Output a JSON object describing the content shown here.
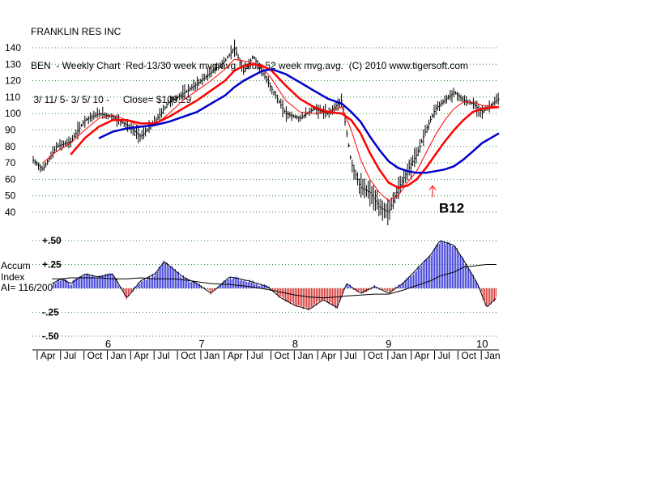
{
  "header": {
    "company": "FRANKLIN RES INC",
    "subtitle": "BEN  - Weekly Chart  Red-13/30 week mvg.avg.  blue 52 week mvg.avg.  (C) 2010 www.tigersoft.com",
    "range": " 3/ 11/ 5- 3/ 5/ 10 -     Close= $109.29"
  },
  "chart_data": [
    {
      "type": "line",
      "title": "FRANKLIN RES INC",
      "subtitle": "BEN  - Weekly Chart  Red-13/30 week mvg.avg.  blue 52 week mvg.avg.  (C) 2010 www.tigersoft.com",
      "ylim": [
        40,
        140
      ],
      "yticks": [
        "140",
        "130",
        "120",
        "110",
        "100",
        "90",
        "80",
        "70",
        "60",
        "50",
        "40"
      ],
      "grid": true,
      "colors": {
        "price": "#000000",
        "ma13": "#ff0000",
        "ma30": "#ff0000",
        "ma52": "#0000cc",
        "signal": "#ff0000"
      },
      "x": [
        2005.19,
        2005.3,
        2005.45,
        2005.6,
        2005.75,
        2005.9,
        2006.05,
        2006.2,
        2006.35,
        2006.5,
        2006.65,
        2006.8,
        2006.95,
        2007.1,
        2007.25,
        2007.35,
        2007.45,
        2007.55,
        2007.65,
        2007.75,
        2007.9,
        2008.05,
        2008.2,
        2008.35,
        2008.5,
        2008.6,
        2008.7,
        2008.8,
        2008.9,
        2009.0,
        2009.1,
        2009.2,
        2009.3,
        2009.4,
        2009.5,
        2009.6,
        2009.7,
        2009.8,
        2009.9,
        2010.0,
        2010.18
      ],
      "series": [
        {
          "key": "price",
          "values": [
            72,
            66,
            80,
            83,
            96,
            100,
            98,
            93,
            86,
            95,
            107,
            112,
            118,
            125,
            132,
            140,
            125,
            135,
            125,
            115,
            100,
            97,
            103,
            100,
            108,
            70,
            55,
            52,
            43,
            40,
            54,
            65,
            75,
            90,
            103,
            108,
            113,
            108,
            106,
            101,
            109
          ]
        },
        {
          "key": "ma13",
          "values": [
            null,
            70,
            77,
            82,
            90,
            97,
            99,
            96,
            92,
            93,
            100,
            108,
            114,
            120,
            127,
            133,
            132,
            131,
            128,
            121,
            108,
            101,
            100,
            101,
            104,
            90,
            72,
            60,
            52,
            47,
            50,
            58,
            65,
            76,
            87,
            96,
            103,
            107,
            107,
            105,
            104
          ]
        },
        {
          "key": "ma30",
          "values": [
            null,
            null,
            null,
            75,
            85,
            92,
            96,
            96,
            94,
            94,
            98,
            103,
            108,
            114,
            120,
            126,
            129,
            130,
            129,
            126,
            117,
            109,
            104,
            101,
            100,
            96,
            88,
            76,
            66,
            58,
            55,
            56,
            60,
            67,
            75,
            83,
            90,
            96,
            101,
            103,
            104
          ]
        },
        {
          "key": "ma52",
          "values": [
            null,
            null,
            null,
            null,
            null,
            85,
            89,
            91,
            92,
            93,
            95,
            98,
            101,
            106,
            111,
            116,
            120,
            123,
            126,
            127,
            124,
            119,
            114,
            109,
            106,
            101,
            95,
            86,
            78,
            71,
            67,
            65,
            64,
            64,
            65,
            66,
            68,
            72,
            77,
            82,
            88
          ]
        }
      ],
      "annotations": [
        {
          "text": "B12",
          "x": 2009.47,
          "y": 58
        }
      ]
    },
    {
      "type": "area",
      "ylabel": "Accum Index",
      "ylabel_lines": [
        "Accum",
        "Index"
      ],
      "ai_label": "AI= 116/200",
      "ylim": [
        -0.5,
        0.5
      ],
      "yticks": [
        {
          "value": 0.5,
          "label": "+.50"
        },
        {
          "value": 0.25,
          "label": "+.25"
        },
        {
          "value": -0.25,
          "label": "-.25"
        },
        {
          "value": -0.5,
          "label": "-.50"
        }
      ],
      "grid": true,
      "colors": {
        "positive": "#0000cc",
        "negative": "#cc0000",
        "ma": "#000000"
      },
      "x": [
        2005.4,
        2005.5,
        2005.6,
        2005.75,
        2005.9,
        2006.05,
        2006.2,
        2006.35,
        2006.5,
        2006.6,
        2006.7,
        2006.8,
        2006.95,
        2007.1,
        2007.3,
        2007.5,
        2007.7,
        2007.85,
        2008.0,
        2008.15,
        2008.3,
        2008.45,
        2008.55,
        2008.7,
        2008.85,
        2009.0,
        2009.15,
        2009.3,
        2009.45,
        2009.55,
        2009.7,
        2009.8,
        2009.95,
        2010.05,
        2010.15
      ],
      "values": [
        0.05,
        0.1,
        0.05,
        0.15,
        0.12,
        0.15,
        -0.1,
        0.08,
        0.15,
        0.28,
        0.2,
        0.12,
        0.05,
        -0.05,
        0.12,
        0.08,
        0.02,
        -0.1,
        -0.18,
        -0.22,
        -0.12,
        -0.2,
        0.05,
        -0.05,
        0.02,
        -0.05,
        0.05,
        0.2,
        0.35,
        0.5,
        0.45,
        0.3,
        0.05,
        -0.2,
        -0.1
      ],
      "ma": [
        0.1,
        0.1,
        0.11,
        0.11,
        0.11,
        0.1,
        0.1,
        0.11,
        0.1,
        0.1,
        0.1,
        0.09,
        0.07,
        0.05,
        0.04,
        0.02,
        -0.01,
        -0.04,
        -0.07,
        -0.09,
        -0.1,
        -0.09,
        -0.08,
        -0.07,
        -0.06,
        -0.06,
        -0.02,
        0.03,
        0.08,
        0.13,
        0.17,
        0.22,
        0.24,
        0.25,
        0.25
      ]
    }
  ],
  "x_axis": {
    "year_labels": [
      {
        "label": "6",
        "x": 2006.0
      },
      {
        "label": "7",
        "x": 2007.0
      },
      {
        "label": "8",
        "x": 2008.0
      },
      {
        "label": "9",
        "x": 2009.0
      },
      {
        "label": "10",
        "x": 2010.0
      }
    ],
    "month_labels": [
      {
        "label": "Apr",
        "x": 2005.25
      },
      {
        "label": "Jul",
        "x": 2005.5
      },
      {
        "label": "Oct",
        "x": 2005.75
      },
      {
        "label": "Jan",
        "x": 2006.0
      },
      {
        "label": "Apr",
        "x": 2006.25
      },
      {
        "label": "Jul",
        "x": 2006.5
      },
      {
        "label": "Oct",
        "x": 2006.75
      },
      {
        "label": "Jan",
        "x": 2007.0
      },
      {
        "label": "Apr",
        "x": 2007.25
      },
      {
        "label": "Jul",
        "x": 2007.5
      },
      {
        "label": "Oct",
        "x": 2007.75
      },
      {
        "label": "Jan",
        "x": 2008.0
      },
      {
        "label": "Apr",
        "x": 2008.25
      },
      {
        "label": "Jul",
        "x": 2008.5
      },
      {
        "label": "Oct",
        "x": 2008.75
      },
      {
        "label": "Jan",
        "x": 2009.0
      },
      {
        "label": "Apr",
        "x": 2009.25
      },
      {
        "label": "Jul",
        "x": 2009.5
      },
      {
        "label": "Oct",
        "x": 2009.75
      },
      {
        "label": "Jan",
        "x": 2010.0
      }
    ]
  }
}
